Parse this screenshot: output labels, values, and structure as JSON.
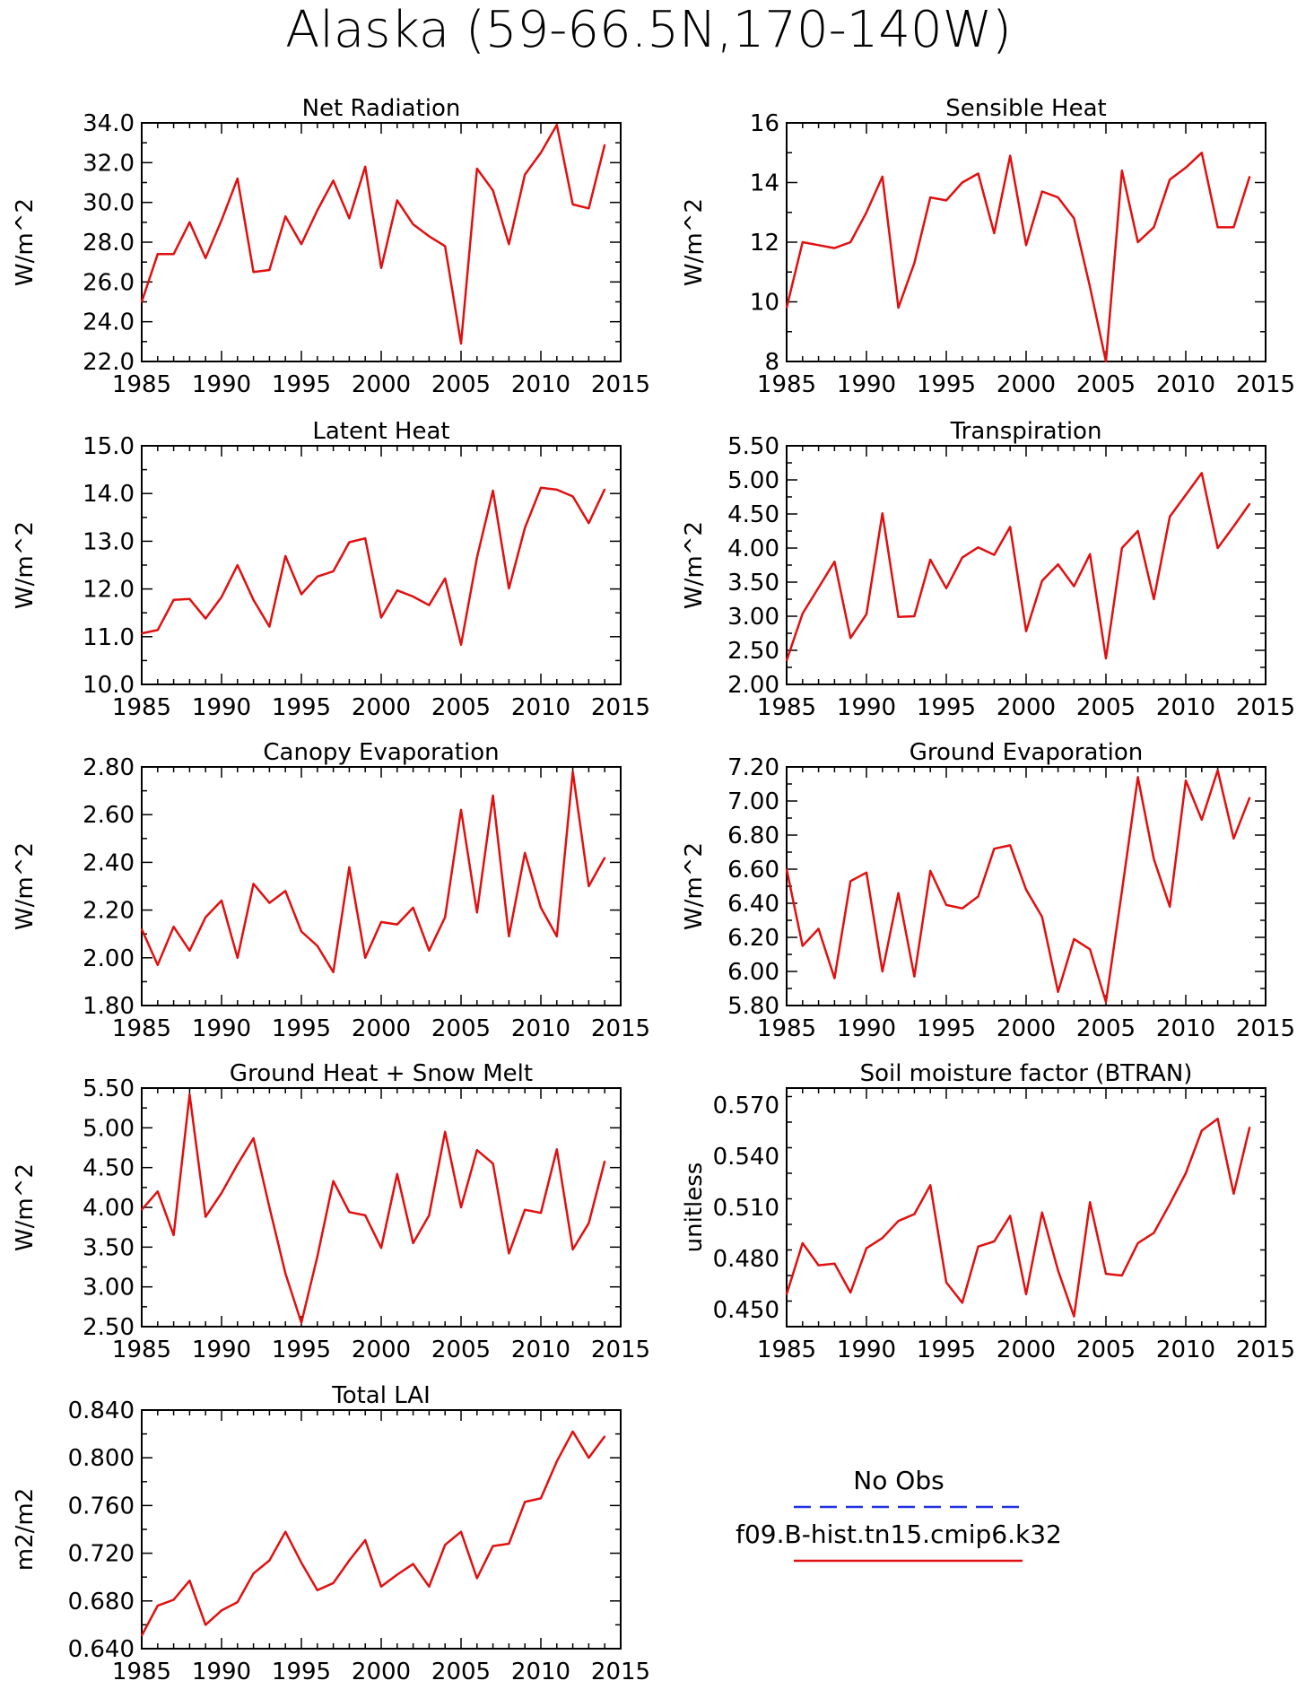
{
  "title": "Alaska (59-66.5N,170-140W)",
  "legend": {
    "entries": [
      {
        "label": "No Obs",
        "color": "#2030e0",
        "dash": "dashed"
      },
      {
        "label": "f09.B-hist.tn15.cmip6.k32",
        "color": "#e01010",
        "dash": "solid"
      }
    ]
  },
  "colors": {
    "series": "#e01010",
    "obs": "#2030e0",
    "axis": "#000000"
  },
  "chart_data": [
    {
      "type": "line",
      "title": "Net Radiation",
      "ylabel": "W/m^2",
      "xlim": [
        1985,
        2015
      ],
      "ylim": [
        22.0,
        34.0
      ],
      "xticks": [
        1985,
        1990,
        1995,
        2000,
        2005,
        2010,
        2015
      ],
      "yticks": [
        "22.0",
        "24.0",
        "26.0",
        "28.0",
        "30.0",
        "32.0",
        "34.0"
      ],
      "x": [
        1985,
        1986,
        1987,
        1988,
        1989,
        1990,
        1991,
        1992,
        1993,
        1994,
        1995,
        1996,
        1997,
        1998,
        1999,
        2000,
        2001,
        2002,
        2003,
        2004,
        2005,
        2006,
        2007,
        2008,
        2009,
        2010,
        2011,
        2012,
        2013,
        2014
      ],
      "series": [
        {
          "values": [
            25.0,
            27.4,
            27.4,
            29.0,
            27.2,
            29.1,
            31.2,
            26.5,
            26.6,
            29.3,
            27.9,
            29.6,
            31.1,
            29.2,
            31.8,
            26.7,
            30.1,
            28.9,
            28.3,
            27.8,
            22.9,
            31.7,
            30.6,
            27.9,
            31.4,
            32.5,
            33.9,
            29.9,
            29.7,
            32.9
          ]
        }
      ]
    },
    {
      "type": "line",
      "title": "Sensible Heat",
      "ylabel": "W/m^2",
      "xlim": [
        1985,
        2015
      ],
      "ylim": [
        8,
        16
      ],
      "xticks": [
        1985,
        1990,
        1995,
        2000,
        2005,
        2010,
        2015
      ],
      "yticks": [
        "8",
        "10",
        "12",
        "14",
        "16"
      ],
      "x": [
        1985,
        1986,
        1987,
        1988,
        1989,
        1990,
        1991,
        1992,
        1993,
        1994,
        1995,
        1996,
        1997,
        1998,
        1999,
        2000,
        2001,
        2002,
        2003,
        2004,
        2005,
        2006,
        2007,
        2008,
        2009,
        2010,
        2011,
        2012,
        2013,
        2014
      ],
      "series": [
        {
          "values": [
            9.8,
            12.0,
            11.9,
            11.8,
            12.0,
            13.0,
            14.2,
            9.8,
            11.3,
            13.5,
            13.4,
            14.0,
            14.3,
            12.3,
            14.9,
            11.9,
            13.7,
            13.5,
            12.8,
            10.5,
            8.0,
            14.4,
            12.0,
            12.5,
            14.1,
            14.5,
            15.0,
            12.5,
            12.5,
            14.2
          ]
        }
      ]
    },
    {
      "type": "line",
      "title": "Latent Heat",
      "ylabel": "W/m^2",
      "xlim": [
        1985,
        2015
      ],
      "ylim": [
        10.0,
        15.0
      ],
      "xticks": [
        1985,
        1990,
        1995,
        2000,
        2005,
        2010,
        2015
      ],
      "yticks": [
        "10.0",
        "11.0",
        "12.0",
        "13.0",
        "14.0",
        "15.0"
      ],
      "x": [
        1985,
        1986,
        1987,
        1988,
        1989,
        1990,
        1991,
        1992,
        1993,
        1994,
        1995,
        1996,
        1997,
        1998,
        1999,
        2000,
        2001,
        2002,
        2003,
        2004,
        2005,
        2006,
        2007,
        2008,
        2009,
        2010,
        2011,
        2012,
        2013,
        2014
      ],
      "series": [
        {
          "values": [
            11.07,
            11.14,
            11.77,
            11.79,
            11.38,
            11.83,
            12.5,
            11.77,
            11.21,
            12.69,
            11.89,
            12.26,
            12.37,
            12.98,
            13.06,
            11.4,
            11.97,
            11.84,
            11.66,
            12.22,
            10.83,
            12.66,
            14.06,
            12.01,
            13.28,
            14.12,
            14.08,
            13.94,
            13.38,
            14.09
          ]
        }
      ]
    },
    {
      "type": "line",
      "title": "Transpiration",
      "ylabel": "W/m^2",
      "xlim": [
        1985,
        2015
      ],
      "ylim": [
        2.0,
        5.5
      ],
      "xticks": [
        1985,
        1990,
        1995,
        2000,
        2005,
        2010,
        2015
      ],
      "yticks": [
        "2.00",
        "2.50",
        "3.00",
        "3.50",
        "4.00",
        "4.50",
        "5.00",
        "5.50"
      ],
      "x": [
        1985,
        1986,
        1987,
        1988,
        1989,
        1990,
        1991,
        1992,
        1993,
        1994,
        1995,
        1996,
        1997,
        1998,
        1999,
        2000,
        2001,
        2002,
        2003,
        2004,
        2005,
        2006,
        2007,
        2008,
        2009,
        2010,
        2011,
        2012,
        2013,
        2014
      ],
      "series": [
        {
          "values": [
            2.35,
            3.04,
            3.42,
            3.8,
            2.68,
            3.03,
            4.51,
            2.99,
            3.0,
            3.83,
            3.41,
            3.86,
            4.01,
            3.9,
            4.31,
            2.78,
            3.52,
            3.76,
            3.44,
            3.91,
            2.38,
            4.0,
            4.25,
            3.25,
            4.46,
            4.78,
            5.1,
            4.0,
            4.32,
            4.65
          ]
        }
      ]
    },
    {
      "type": "line",
      "title": "Canopy Evaporation",
      "ylabel": "W/m^2",
      "xlim": [
        1985,
        2015
      ],
      "ylim": [
        1.8,
        2.8
      ],
      "xticks": [
        1985,
        1990,
        1995,
        2000,
        2005,
        2010,
        2015
      ],
      "yticks": [
        "1.80",
        "2.00",
        "2.20",
        "2.40",
        "2.60",
        "2.80"
      ],
      "x": [
        1985,
        1986,
        1987,
        1988,
        1989,
        1990,
        1991,
        1992,
        1993,
        1994,
        1995,
        1996,
        1997,
        1998,
        1999,
        2000,
        2001,
        2002,
        2003,
        2004,
        2005,
        2006,
        2007,
        2008,
        2009,
        2010,
        2011,
        2012,
        2013,
        2014
      ],
      "series": [
        {
          "values": [
            2.12,
            1.97,
            2.13,
            2.03,
            2.17,
            2.24,
            2.0,
            2.31,
            2.23,
            2.28,
            2.11,
            2.05,
            1.94,
            2.38,
            2.0,
            2.15,
            2.14,
            2.21,
            2.03,
            2.17,
            2.62,
            2.19,
            2.68,
            2.09,
            2.44,
            2.21,
            2.09,
            2.78,
            2.3,
            2.42
          ]
        }
      ]
    },
    {
      "type": "line",
      "title": "Ground Evaporation",
      "ylabel": "W/m^2",
      "xlim": [
        1985,
        2015
      ],
      "ylim": [
        5.8,
        7.2
      ],
      "xticks": [
        1985,
        1990,
        1995,
        2000,
        2005,
        2010,
        2015
      ],
      "yticks": [
        "5.80",
        "6.00",
        "6.20",
        "6.40",
        "6.60",
        "6.80",
        "7.00",
        "7.20"
      ],
      "x": [
        1985,
        1986,
        1987,
        1988,
        1989,
        1990,
        1991,
        1992,
        1993,
        1994,
        1995,
        1996,
        1997,
        1998,
        1999,
        2000,
        2001,
        2002,
        2003,
        2004,
        2005,
        2006,
        2007,
        2008,
        2009,
        2010,
        2011,
        2012,
        2013,
        2014
      ],
      "series": [
        {
          "values": [
            6.6,
            6.15,
            6.25,
            5.96,
            6.53,
            6.58,
            6.0,
            6.46,
            5.97,
            6.59,
            6.39,
            6.37,
            6.44,
            6.72,
            6.74,
            6.48,
            6.32,
            5.88,
            6.19,
            6.13,
            5.82,
            6.47,
            7.14,
            6.66,
            6.38,
            7.12,
            6.89,
            7.18,
            6.78,
            7.02
          ]
        }
      ]
    },
    {
      "type": "line",
      "title": "Ground Heat + Snow Melt",
      "ylabel": "W/m^2",
      "xlim": [
        1985,
        2015
      ],
      "ylim": [
        2.5,
        5.5
      ],
      "xticks": [
        1985,
        1990,
        1995,
        2000,
        2005,
        2010,
        2015
      ],
      "yticks": [
        "2.50",
        "3.00",
        "3.50",
        "4.00",
        "4.50",
        "5.00",
        "5.50"
      ],
      "x": [
        1985,
        1986,
        1987,
        1988,
        1989,
        1990,
        1991,
        1992,
        1993,
        1994,
        1995,
        1996,
        1997,
        1998,
        1999,
        2000,
        2001,
        2002,
        2003,
        2004,
        2005,
        2006,
        2007,
        2008,
        2009,
        2010,
        2011,
        2012,
        2013,
        2014
      ],
      "series": [
        {
          "values": [
            3.97,
            4.2,
            3.65,
            5.42,
            3.88,
            4.18,
            4.54,
            4.87,
            4.0,
            3.17,
            2.55,
            3.38,
            4.33,
            3.94,
            3.9,
            3.49,
            4.42,
            3.55,
            3.9,
            4.95,
            4.0,
            4.72,
            4.55,
            3.42,
            3.97,
            3.93,
            4.73,
            3.47,
            3.8,
            4.58
          ]
        }
      ]
    },
    {
      "type": "line",
      "title": "Soil moisture factor (BTRAN)",
      "ylabel": "unitless",
      "xlim": [
        1985,
        2015
      ],
      "ylim": [
        0.44,
        0.58
      ],
      "xticks": [
        1985,
        1990,
        1995,
        2000,
        2005,
        2010,
        2015
      ],
      "yticks": [
        "0.450",
        "0.480",
        "0.510",
        "0.540",
        "0.570"
      ],
      "x": [
        1985,
        1986,
        1987,
        1988,
        1989,
        1990,
        1991,
        1992,
        1993,
        1994,
        1995,
        1996,
        1997,
        1998,
        1999,
        2000,
        2001,
        2002,
        2003,
        2004,
        2005,
        2006,
        2007,
        2008,
        2009,
        2010,
        2011,
        2012,
        2013,
        2014
      ],
      "series": [
        {
          "values": [
            0.459,
            0.489,
            0.476,
            0.477,
            0.46,
            0.486,
            0.492,
            0.502,
            0.506,
            0.523,
            0.466,
            0.454,
            0.487,
            0.49,
            0.505,
            0.459,
            0.507,
            0.473,
            0.446,
            0.513,
            0.471,
            0.47,
            0.489,
            0.495,
            0.512,
            0.53,
            0.555,
            0.562,
            0.518,
            0.557
          ]
        }
      ]
    },
    {
      "type": "line",
      "title": "Total LAI",
      "ylabel": "m2/m2",
      "xlim": [
        1985,
        2015
      ],
      "ylim": [
        0.64,
        0.84
      ],
      "xticks": [
        1985,
        1990,
        1995,
        2000,
        2005,
        2010,
        2015
      ],
      "yticks": [
        "0.640",
        "0.680",
        "0.720",
        "0.760",
        "0.800",
        "0.840"
      ],
      "x": [
        1985,
        1986,
        1987,
        1988,
        1989,
        1990,
        1991,
        1992,
        1993,
        1994,
        1995,
        1996,
        1997,
        1998,
        1999,
        2000,
        2001,
        2002,
        2003,
        2004,
        2005,
        2006,
        2007,
        2008,
        2009,
        2010,
        2011,
        2012,
        2013,
        2014
      ],
      "series": [
        {
          "values": [
            0.651,
            0.676,
            0.681,
            0.697,
            0.66,
            0.672,
            0.679,
            0.703,
            0.714,
            0.738,
            0.712,
            0.689,
            0.695,
            0.714,
            0.731,
            0.692,
            0.702,
            0.711,
            0.692,
            0.727,
            0.738,
            0.699,
            0.726,
            0.728,
            0.763,
            0.766,
            0.797,
            0.822,
            0.8,
            0.818
          ]
        }
      ]
    }
  ]
}
